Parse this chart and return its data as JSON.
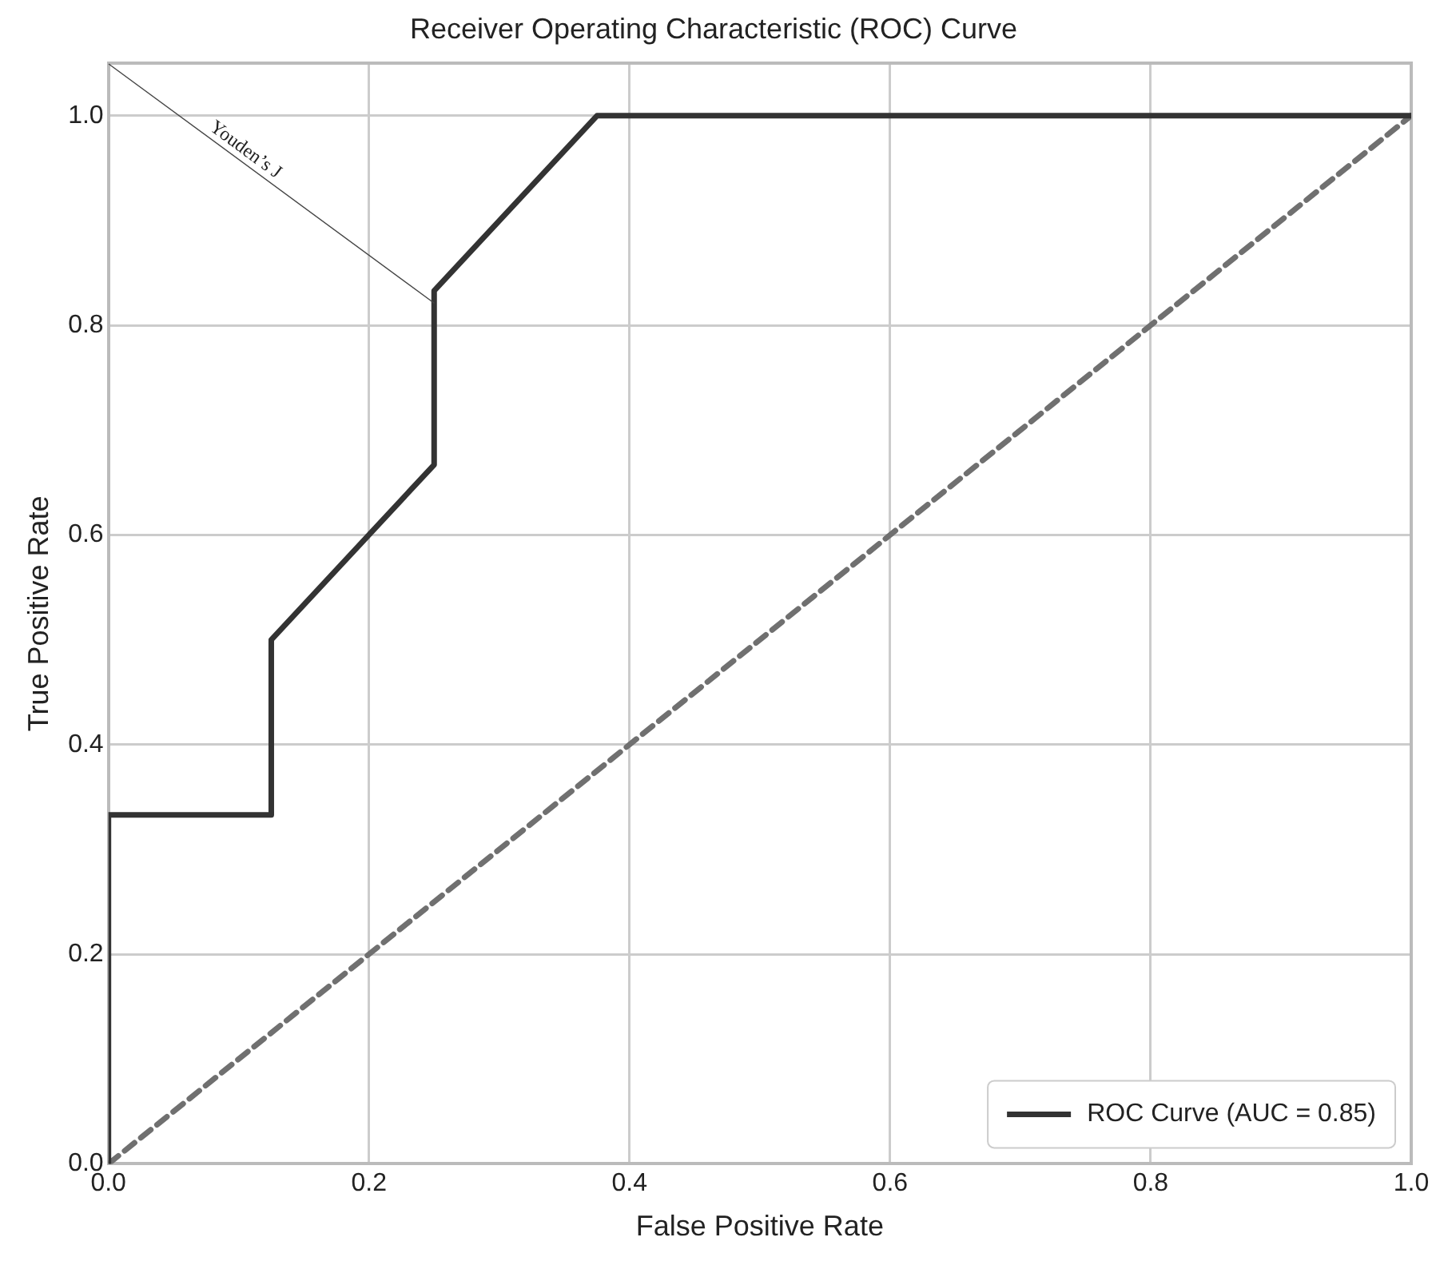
{
  "chart_data": {
    "type": "line",
    "title": "Receiver Operating Characteristic (ROC) Curve",
    "xlabel": "False Positive Rate",
    "ylabel": "True Positive Rate",
    "series": [
      {
        "name": "ROC Curve (AUC = 0.85)",
        "color": "#333333",
        "x": [
          0,
          0,
          0.125,
          0.125,
          0.25,
          0.25,
          0.375,
          1
        ],
        "values": [
          0,
          0.333,
          0.333,
          0.5,
          0.667,
          0.833,
          1,
          1
        ],
        "line_style": "solid"
      },
      {
        "color": "#707070",
        "x": [
          0,
          1
        ],
        "values": [
          0,
          1
        ],
        "line_style": "dashed"
      }
    ],
    "xlim": [
      0,
      1
    ],
    "ylim": [
      0,
      1.05
    ],
    "xticks": [
      {
        "value": 0,
        "label": "0.0"
      },
      {
        "value": 0.2,
        "label": "0.2"
      },
      {
        "value": 0.4,
        "label": "0.4"
      },
      {
        "value": 0.6,
        "label": "0.6"
      },
      {
        "value": 0.8,
        "label": "0.8"
      },
      {
        "value": 1,
        "label": "1.0"
      }
    ],
    "yticks": [
      {
        "value": 0,
        "label": "0.0"
      },
      {
        "value": 0.2,
        "label": "0.2"
      },
      {
        "value": 0.4,
        "label": "0.4"
      },
      {
        "value": 0.6,
        "label": "0.6"
      },
      {
        "value": 0.8,
        "label": "0.8"
      },
      {
        "value": 1,
        "label": "1.0"
      }
    ],
    "annotations": [
      "Youden’s J"
    ],
    "grid": true,
    "legend": "bottom right",
    "marker": "none"
  }
}
